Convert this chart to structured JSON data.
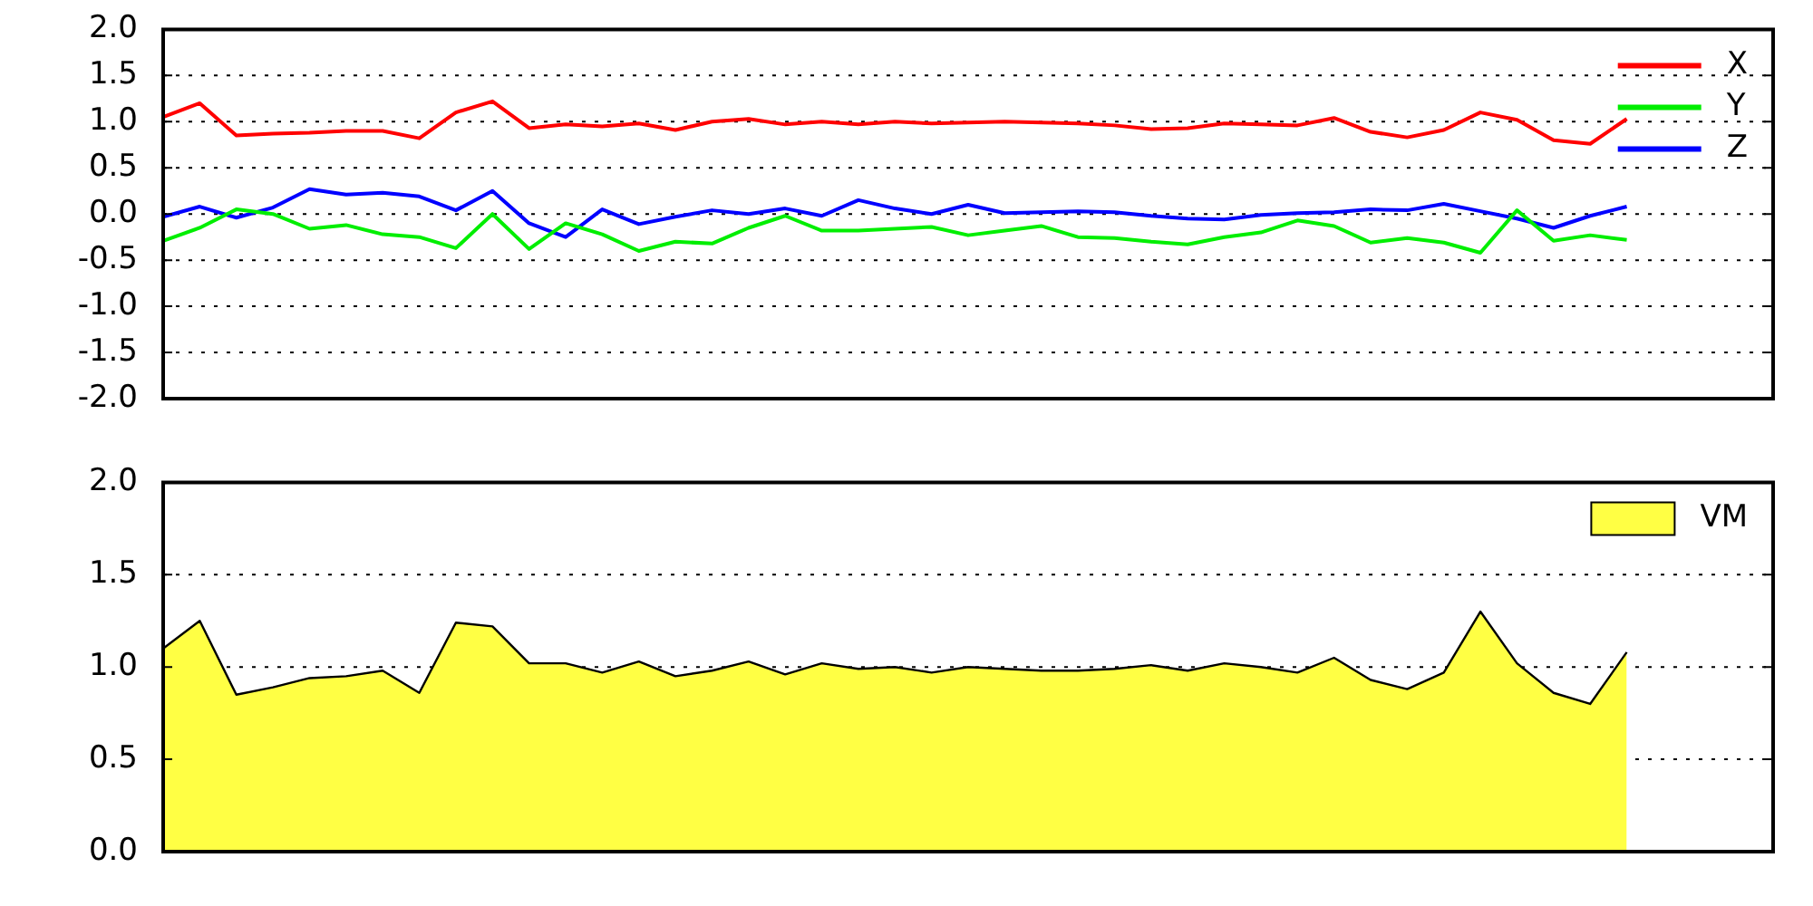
{
  "chart_data": [
    {
      "type": "line",
      "categories": [
        null,
        null,
        null,
        null,
        null,
        null,
        null,
        null,
        null,
        null,
        null,
        null,
        null,
        null,
        null,
        null,
        null,
        null,
        null,
        null,
        null,
        null,
        null,
        null,
        null,
        null,
        null,
        null,
        null,
        null,
        null,
        null,
        null,
        null,
        null,
        null,
        null,
        null,
        null,
        null,
        null,
        null,
        null,
        null,
        null
      ],
      "ylim": [
        -2,
        2
      ],
      "yticks": [
        {
          "value": -2,
          "label": "-2.0"
        },
        {
          "value": -1.5,
          "label": "-1.5"
        },
        {
          "value": -1,
          "label": "-1.0"
        },
        {
          "value": -0.5,
          "label": "-0.5"
        },
        {
          "value": 0,
          "label": "0.0"
        },
        {
          "value": 0.5,
          "label": "0.5"
        },
        {
          "value": 1,
          "label": "1.0"
        },
        {
          "value": 1.5,
          "label": "1.5"
        },
        {
          "value": 2,
          "label": "2.0"
        }
      ],
      "grid": "y",
      "legend": "top right",
      "tick_labels": "y",
      "series": [
        {
          "name": "X",
          "color": "#ff0000",
          "values": [
            1.05,
            1.2,
            0.85,
            0.87,
            0.88,
            0.9,
            0.9,
            0.82,
            1.1,
            1.22,
            0.93,
            0.97,
            0.95,
            0.98,
            0.91,
            1.0,
            1.03,
            0.97,
            1.0,
            0.97,
            1.0,
            0.98,
            0.99,
            1.0,
            0.99,
            0.98,
            0.96,
            0.92,
            0.93,
            0.98,
            0.97,
            0.96,
            1.04,
            0.89,
            0.83,
            0.91,
            1.1,
            1.02,
            0.8,
            0.76,
            1.03,
            null,
            null,
            null,
            null
          ]
        },
        {
          "name": "Y",
          "color": "#00ee00",
          "values": [
            -0.29,
            -0.15,
            0.05,
            0.0,
            -0.16,
            -0.12,
            -0.22,
            -0.25,
            -0.37,
            0.0,
            -0.38,
            -0.1,
            -0.22,
            -0.4,
            -0.3,
            -0.32,
            -0.15,
            -0.02,
            -0.18,
            -0.18,
            -0.16,
            -0.14,
            -0.23,
            -0.18,
            -0.13,
            -0.25,
            -0.26,
            -0.3,
            -0.33,
            -0.25,
            -0.2,
            -0.07,
            -0.13,
            -0.31,
            -0.26,
            -0.31,
            -0.42,
            0.04,
            -0.29,
            -0.23,
            -0.28,
            null,
            null,
            null,
            null
          ]
        },
        {
          "name": "Z",
          "color": "#0000ff",
          "values": [
            -0.03,
            0.08,
            -0.04,
            0.07,
            0.27,
            0.21,
            0.23,
            0.19,
            0.04,
            0.25,
            -0.1,
            -0.25,
            0.05,
            -0.11,
            -0.03,
            0.04,
            0.0,
            0.06,
            -0.02,
            0.15,
            0.06,
            0.0,
            0.1,
            0.01,
            0.02,
            0.03,
            0.02,
            -0.02,
            -0.05,
            -0.06,
            -0.01,
            0.01,
            0.02,
            0.05,
            0.04,
            0.11,
            0.03,
            -0.05,
            -0.15,
            -0.02,
            0.08,
            null,
            null,
            null,
            null
          ]
        }
      ]
    },
    {
      "type": "area",
      "categories": [
        null,
        null,
        null,
        null,
        null,
        null,
        null,
        null,
        null,
        null,
        null,
        null,
        null,
        null,
        null,
        null,
        null,
        null,
        null,
        null,
        null,
        null,
        null,
        null,
        null,
        null,
        null,
        null,
        null,
        null,
        null,
        null,
        null,
        null,
        null,
        null,
        null,
        null,
        null,
        null,
        null,
        null,
        null,
        null,
        null
      ],
      "ylim": [
        0,
        2
      ],
      "yticks": [
        {
          "value": 0,
          "label": "0.0"
        },
        {
          "value": 0.5,
          "label": "0.5"
        },
        {
          "value": 1,
          "label": "1.0"
        },
        {
          "value": 1.5,
          "label": "1.5"
        },
        {
          "value": 2,
          "label": "2.0"
        }
      ],
      "grid": "y",
      "legend": "top right",
      "tick_labels": "y",
      "series": [
        {
          "name": "VM",
          "color": "#ffff44",
          "values": [
            1.1,
            1.25,
            0.85,
            0.89,
            0.94,
            0.95,
            0.98,
            0.86,
            1.24,
            1.22,
            1.02,
            1.02,
            0.97,
            1.03,
            0.95,
            0.98,
            1.03,
            0.96,
            1.02,
            0.99,
            1.0,
            0.97,
            1.0,
            0.99,
            0.98,
            0.98,
            0.99,
            1.01,
            0.98,
            1.02,
            1.0,
            0.97,
            1.05,
            0.93,
            0.88,
            0.97,
            1.3,
            1.02,
            0.86,
            0.8,
            1.08,
            null,
            null,
            null,
            null
          ]
        }
      ]
    }
  ]
}
